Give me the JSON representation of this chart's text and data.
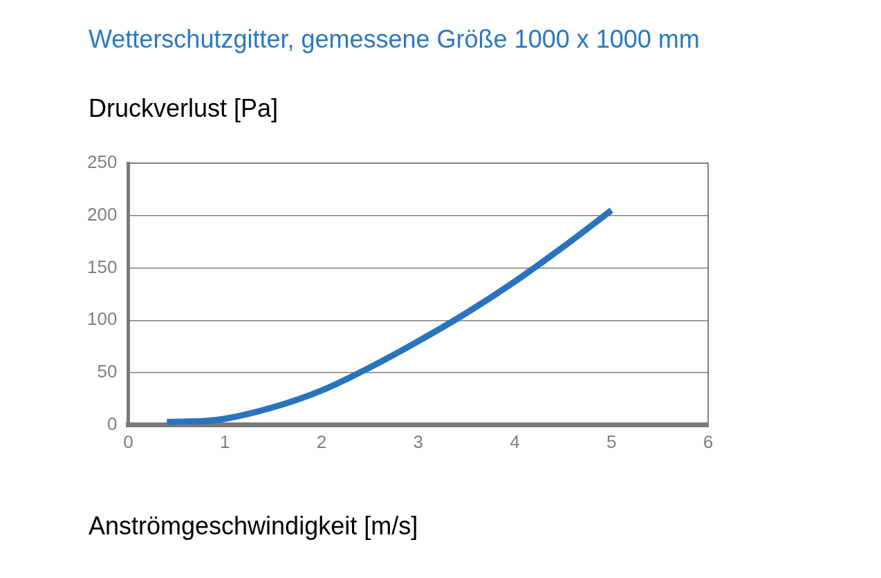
{
  "chart_data": {
    "type": "line",
    "title": "Wetterschutzgitter, gemessene Größe 1000 x 1000 mm",
    "ylabel": "Druckverlust [Pa]",
    "xlabel": "Anströmgeschwindigkeit [m/s]",
    "series": [
      {
        "color": "#2a73bd",
        "x": [
          0.4,
          0.8,
          1,
          1.5,
          2,
          2.5,
          3,
          3.5,
          4,
          4.5,
          5
        ],
        "values": [
          3,
          4,
          6,
          17,
          33,
          55,
          80,
          107,
          137,
          170,
          205
        ]
      }
    ],
    "xlim": [
      0,
      6
    ],
    "xticks": [
      0,
      1,
      2,
      3,
      4,
      5,
      6
    ],
    "ylim": [
      0,
      250
    ],
    "yticks": [
      0,
      50,
      100,
      150,
      200,
      250
    ],
    "grid": "y",
    "legend": false,
    "marker": "none",
    "line_style": "solid"
  }
}
